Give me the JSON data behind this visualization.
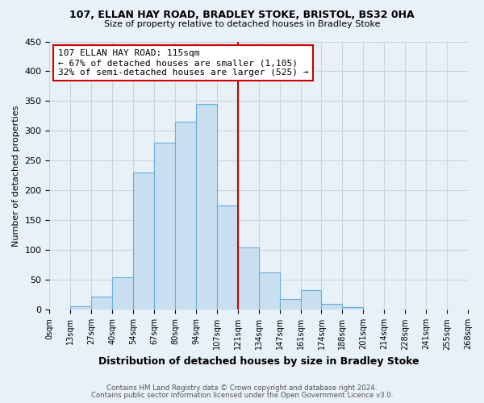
{
  "title1": "107, ELLAN HAY ROAD, BRADLEY STOKE, BRISTOL, BS32 0HA",
  "title2": "Size of property relative to detached houses in Bradley Stoke",
  "xlabel": "Distribution of detached houses by size in Bradley Stoke",
  "ylabel": "Number of detached properties",
  "bin_labels": [
    "0sqm",
    "13sqm",
    "27sqm",
    "40sqm",
    "54sqm",
    "67sqm",
    "80sqm",
    "94sqm",
    "107sqm",
    "121sqm",
    "134sqm",
    "147sqm",
    "161sqm",
    "174sqm",
    "188sqm",
    "201sqm",
    "214sqm",
    "228sqm",
    "241sqm",
    "255sqm",
    "268sqm"
  ],
  "bar_heights": [
    0,
    6,
    22,
    55,
    230,
    280,
    315,
    345,
    175,
    105,
    63,
    18,
    33,
    10,
    5,
    0,
    0,
    0,
    0,
    0
  ],
  "bar_color": "#c8dff0",
  "bar_edge_color": "#6aaed6",
  "marker_bin": 8,
  "marker_color": "#cc0000",
  "annotation_title": "107 ELLAN HAY ROAD: 115sqm",
  "annotation_line1": "← 67% of detached houses are smaller (1,105)",
  "annotation_line2": "32% of semi-detached houses are larger (525) →",
  "annotation_box_color": "#ffffff",
  "annotation_box_edge": "#cc0000",
  "ylim": [
    0,
    450
  ],
  "yticks": [
    0,
    50,
    100,
    150,
    200,
    250,
    300,
    350,
    400,
    450
  ],
  "footer1": "Contains HM Land Registry data © Crown copyright and database right 2024.",
  "footer2": "Contains public sector information licensed under the Open Government Licence v3.0.",
  "bg_color": "#e8f0f8",
  "grid_color": "#c8d4e0"
}
